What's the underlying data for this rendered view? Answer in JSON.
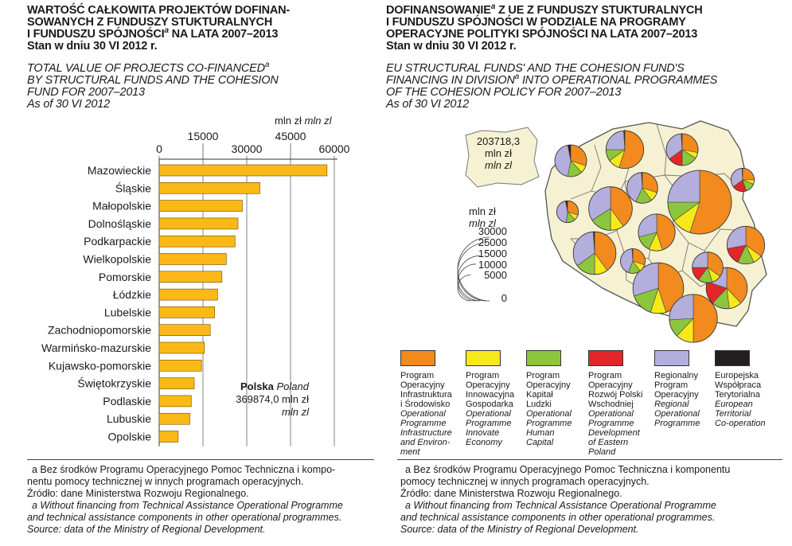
{
  "left": {
    "title_pl": [
      "WARTOŚĆ CAŁKOWITA PROJEKTÓW DOFINAN-",
      "SOWANYCH Z FUNDUSZY STUKTURALNYCH",
      "I FUNDUSZU SPÓJNOŚCI",
      "a",
      " NA LATA 2007–2013"
    ],
    "date_pl": "Stan w dniu 30 VI 2012 r.",
    "title_en": [
      "TOTAL VALUE OF PROJECTS CO-FINANCED",
      "a",
      "BY STRUCTURAL FUNDS AND THE COHESION",
      "FUND FOR 2007–2013"
    ],
    "date_en": "As of 30 VI 2012",
    "unit_pl": "mln zł",
    "unit_en": "mln zl",
    "total_label_pl": "Polska",
    "total_label_en": "Poland",
    "total_value": "369874,0 mln zł",
    "total_unit_en": "mln zl",
    "footnote": {
      "a_pl": "a  Bez środków Programu Operacyjnego Pomoc Techniczna i kompo-",
      "a_pl2": "nentu pomocy technicznej w innych programach operacyjnych.",
      "source_pl": "Źródło: dane Ministerstwa Rozwoju Regionalnego.",
      "a_en": "a  Without financing from Technical Assistance Operational Programme",
      "a_en2": "and technical assistance components in other operational programmes.",
      "source_en": "Source: data of the Ministry of Regional Development."
    }
  },
  "right": {
    "title_pl": [
      "DOFINANSOWANIE",
      "a",
      " Z UE Z FUNDUSZY STUKTURALNYCH",
      "I FUNDUSZU SPÓJNOŚCI W PODZIALE NA PROGRAMY",
      "OPERACYJNE POLITYKI SPÓJNOŚCI NA LATA 2007–2013"
    ],
    "date_pl": "Stan w dniu 30 VI 2012 r.",
    "title_en": [
      "EU STRUCTURAL FUNDS' AND THE COHESION FUND'S",
      "FINANCING IN DIVISION",
      "a",
      " INTO OPERATIONAL PROGRAMMES",
      "OF THE COHESION POLICY FOR 2007–2013"
    ],
    "date_en": "As of 30 VI 2012",
    "total_value": "203718,3",
    "total_unit_pl": "mln zł",
    "total_unit_en": "mln zl",
    "scale_unit_pl": "mln zł",
    "scale_unit_en": "mln zl",
    "scale_labels": [
      "30000",
      "25000",
      "15000",
      "10000",
      "5000",
      "0"
    ],
    "legend": [
      {
        "color": "#f28a1e",
        "pl": [
          "Program",
          "Operacyjny",
          "Infrastruktura",
          "i Środowisko"
        ],
        "en": [
          "Operational",
          "Programme",
          "Infrastructure",
          "and Environ-",
          "ment"
        ]
      },
      {
        "color": "#f7e81a",
        "pl": [
          "Program",
          "Operacyjny",
          "Innowacyjna",
          "Gospodarka"
        ],
        "en": [
          "Operational",
          "Programme",
          "Innovate",
          "Economy"
        ]
      },
      {
        "color": "#8cc63e",
        "pl": [
          "Program",
          "Operacyjny",
          "Kapitał",
          "Ludzki"
        ],
        "en": [
          "Operational",
          "Programme",
          "Human",
          "Capital"
        ]
      },
      {
        "color": "#e3262a",
        "pl": [
          "Program",
          "Operacyjny",
          "Rozwój Polski",
          "Wschodniej"
        ],
        "en": [
          "Operational",
          "Programme",
          "Development",
          "of Eastern Poland"
        ]
      },
      {
        "color": "#b3aedc",
        "pl": [
          "Regionalny",
          "Program",
          "Operacyjny"
        ],
        "en": [
          "Regional",
          "Operational",
          "Programme"
        ]
      },
      {
        "color": "#231f20",
        "pl": [
          "Europejska",
          "Współpraca",
          "Terytorialna"
        ],
        "en": [
          "European",
          "Territorial",
          "Co-operation"
        ]
      }
    ],
    "footnote": {
      "a_pl": "a  Bez środków Programu Operacyjnego Pomoc Techniczna i komponentu",
      "a_pl2": "pomocy technicznej w innych programach operacyjnych.",
      "source_pl": "Źródło: dane Ministerstwa Rozwoju Regionalnego.",
      "a_en": "a  Without financing from Technical Assistance Operational Programme",
      "a_en2": "and technical assistance components in other operational programmes.",
      "source_en": "Source: data of the Ministry of Regional Development."
    }
  },
  "chart_data": [
    {
      "type": "bar",
      "orientation": "horizontal",
      "title": "WARTOŚĆ CAŁKOWITA PROJEKTÓW DOFINANSOWANYCH Z FUNDUSZY STUKTURALNYCH I FUNDUSZU SPÓJNOŚCI NA LATA 2007–2013 / TOTAL VALUE OF PROJECTS CO-FINANCED BY STRUCTURAL FUNDS AND THE COHESION FUND FOR 2007–2013",
      "xlabel": "mln zł mln zl",
      "xlim": [
        0,
        60000
      ],
      "xticks": [
        0,
        15000,
        30000,
        45000,
        60000
      ],
      "grid": true,
      "bar_color": "#fbb917",
      "categories": [
        "Mazowieckie",
        "Śląskie",
        "Małopolskie",
        "Dolnośląskie",
        "Podkarpackie",
        "Wielkopolskie",
        "Pomorskie",
        "Łódzkie",
        "Lubelskie",
        "Zachodniopomorskie",
        "Warmińsko-mazurskie",
        "Kujawsko-pomorskie",
        "Świętokrzyskie",
        "Podlaskie",
        "Lubuskie",
        "Opolskie"
      ],
      "values": [
        57500,
        34500,
        28500,
        27000,
        26000,
        23000,
        21500,
        20000,
        19000,
        17500,
        15500,
        14500,
        12000,
        11000,
        10500,
        6500
      ]
    },
    {
      "type": "pie",
      "subtype": "proportional pies on map",
      "title": "DOFINANSOWANIE Z UE Z FUNDUSZY STUKTURALNYCH I FUNDUSZU SPÓJNOŚCI W PODZIALE NA PROGRAMY OPERACYJNE POLITYKI SPÓJNOŚCI NA LATA 2007–2013",
      "total": 203718.3,
      "series": [
        "PO Infrastruktura i Środowisko",
        "PO Innowacyjna Gospodarka",
        "PO Kapitał Ludzki",
        "PO Rozwój Polski Wschodniej",
        "Regionalny Program Operacyjny",
        "Europejska Współpraca Terytorialna"
      ],
      "colors": [
        "#f28a1e",
        "#f7e81a",
        "#8cc63e",
        "#e3262a",
        "#b3aedc",
        "#231f20"
      ],
      "pies": [
        {
          "region": "Mazowieckie",
          "value": 30000,
          "shares": [
            55,
            10,
            10,
            0,
            25,
            0
          ]
        },
        {
          "region": "Pomorskie",
          "value": 10500,
          "shares": [
            55,
            10,
            10,
            0,
            24,
            1
          ]
        },
        {
          "region": "Zachodniopomorskie",
          "value": 7500,
          "shares": [
            30,
            8,
            15,
            0,
            44,
            3
          ]
        },
        {
          "region": "Warmińsko-mazurskie",
          "value": 7500,
          "shares": [
            28,
            6,
            16,
            15,
            34,
            1
          ]
        },
        {
          "region": "Podlaskie",
          "value": 4000,
          "shares": [
            25,
            6,
            14,
            20,
            34,
            1
          ]
        },
        {
          "region": "Kujawsko-pomorskie",
          "value": 7000,
          "shares": [
            30,
            10,
            17,
            0,
            42,
            1
          ]
        },
        {
          "region": "Lubuskie",
          "value": 3500,
          "shares": [
            30,
            8,
            14,
            0,
            45,
            3
          ]
        },
        {
          "region": "Wielkopolskie",
          "value": 14000,
          "shares": [
            40,
            10,
            16,
            0,
            34,
            0
          ]
        },
        {
          "region": "Łódzkie",
          "value": 10000,
          "shares": [
            45,
            12,
            14,
            0,
            29,
            0
          ]
        },
        {
          "region": "Lubelskie",
          "value": 10500,
          "shares": [
            35,
            8,
            14,
            15,
            28,
            0
          ]
        },
        {
          "region": "Dolnośląskie",
          "value": 13500,
          "shares": [
            40,
            10,
            15,
            0,
            34,
            1
          ]
        },
        {
          "region": "Opolskie",
          "value": 4500,
          "shares": [
            30,
            10,
            16,
            0,
            43,
            1
          ]
        },
        {
          "region": "Śląskie",
          "value": 19000,
          "shares": [
            45,
            10,
            15,
            0,
            30,
            0
          ]
        },
        {
          "region": "Świętokrzyskie",
          "value": 7000,
          "shares": [
            35,
            10,
            15,
            15,
            25,
            0
          ]
        },
        {
          "region": "Małopolskie",
          "value": 17000,
          "shares": [
            50,
            12,
            12,
            0,
            26,
            0
          ]
        },
        {
          "region": "Podkarpackie",
          "value": 12500,
          "shares": [
            38,
            10,
            14,
            18,
            20,
            0
          ]
        }
      ]
    }
  ]
}
